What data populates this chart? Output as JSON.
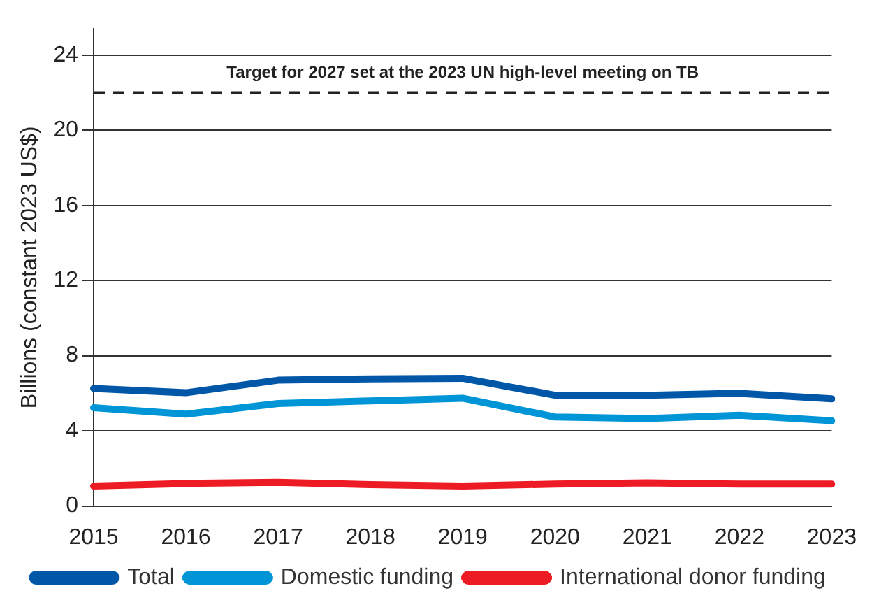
{
  "chart_data": {
    "type": "line",
    "ylabel": "Billions (constant 2023 US$)",
    "categories": [
      "2015",
      "2016",
      "2017",
      "2018",
      "2019",
      "2020",
      "2021",
      "2022",
      "2023"
    ],
    "series": [
      {
        "name": "Total",
        "color": "#0057a8",
        "values": [
          6.26,
          6.03,
          6.7,
          6.77,
          6.8,
          5.9,
          5.89,
          6.0,
          5.71
        ]
      },
      {
        "name": "Domestic funding",
        "color": "#0095d6",
        "values": [
          5.23,
          4.89,
          5.46,
          5.6,
          5.74,
          4.74,
          4.66,
          4.83,
          4.54
        ]
      },
      {
        "name": "International donor funding",
        "color": "#ed1c24",
        "values": [
          1.06,
          1.2,
          1.26,
          1.14,
          1.06,
          1.17,
          1.23,
          1.17,
          1.17
        ]
      }
    ],
    "ylim": [
      0,
      25.4
    ],
    "yticks": [
      0,
      4,
      8,
      12,
      16,
      20,
      24
    ],
    "grid": "y",
    "legend": "bottom",
    "marker": "none",
    "line_style": "solid",
    "ref_lines": [
      {
        "axis": "y",
        "value": 22,
        "label": "Target for 2027 set at the 2023 UN high-level meeting on TB",
        "color": "#222222",
        "line_style": "dashed"
      }
    ]
  }
}
